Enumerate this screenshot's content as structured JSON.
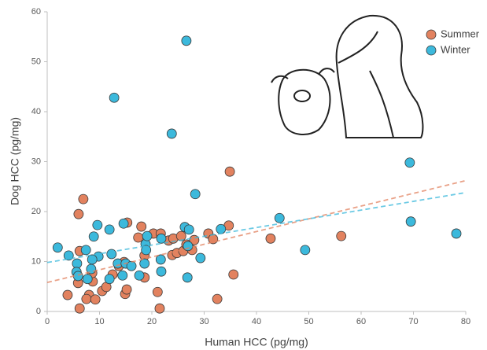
{
  "chart_data": {
    "type": "scatter",
    "x_label": "Human HCC (pg/mg)",
    "y_label": "Dog HCC (pg/mg)",
    "xlim": [
      0,
      80
    ],
    "xticks": [
      0,
      10,
      20,
      30,
      40,
      50,
      60,
      70,
      80
    ],
    "ylim": [
      0,
      60
    ],
    "yticks": [
      0,
      10,
      20,
      30,
      40,
      50,
      60
    ],
    "grid": false,
    "legend": "upper right",
    "series": [
      {
        "name": "Summer",
        "color": "#e2825f",
        "x": [
          6.9,
          6.0,
          6.2,
          3.9,
          6.2,
          5.9,
          8.0,
          7.5,
          9.2,
          8.7,
          8.6,
          10.5,
          11.3,
          12.5,
          13.7,
          14.9,
          15.2,
          14.7,
          15.3,
          17.4,
          18.0,
          18.6,
          18.6,
          20.3,
          21.1,
          21.5,
          21.7,
          23.2,
          23.9,
          24.1,
          24.8,
          25.6,
          26.0,
          26.6,
          27.7,
          28.1,
          30.8,
          31.7,
          32.5,
          34.7,
          34.9,
          35.6,
          42.7,
          56.2
        ],
        "values": [
          22.5,
          19.5,
          12.1,
          3.3,
          0.6,
          5.7,
          3.3,
          2.5,
          2.4,
          6.0,
          7.7,
          4.1,
          4.9,
          7.4,
          9.1,
          3.5,
          4.4,
          9.9,
          17.8,
          14.8,
          17.0,
          6.8,
          11.2,
          15.6,
          3.9,
          0.6,
          15.6,
          14.2,
          11.3,
          14.6,
          11.7,
          15.1,
          12.1,
          13.4,
          12.3,
          14.3,
          15.6,
          14.5,
          2.5,
          17.2,
          28.0,
          7.4,
          14.6,
          15.1
        ],
        "trend_x": [
          0,
          80
        ],
        "trend": [
          5.8,
          26.2
        ]
      },
      {
        "name": "Winter",
        "color": "#3cb9dc",
        "x": [
          2.0,
          4.1,
          5.7,
          5.6,
          5.9,
          7.4,
          7.7,
          8.4,
          8.9,
          9.6,
          9.8,
          8.6,
          11.9,
          11.9,
          12.3,
          12.8,
          13.5,
          14.6,
          14.4,
          15.0,
          16.1,
          17.6,
          18.6,
          18.8,
          18.9,
          19.1,
          21.7,
          21.8,
          21.8,
          23.8,
          26.3,
          26.6,
          26.8,
          27.1,
          26.9,
          28.3,
          29.3,
          33.2,
          44.4,
          49.3,
          69.3,
          69.5,
          78.2
        ],
        "values": [
          12.8,
          11.2,
          9.6,
          7.9,
          7.1,
          12.3,
          6.5,
          8.5,
          15.0,
          17.3,
          11.0,
          10.4,
          16.4,
          6.5,
          11.5,
          42.8,
          9.6,
          17.6,
          7.2,
          9.6,
          9.1,
          7.2,
          9.6,
          13.5,
          12.3,
          15.1,
          10.4,
          8.0,
          14.6,
          35.6,
          16.9,
          54.2,
          6.8,
          16.4,
          13.1,
          23.5,
          10.7,
          16.5,
          18.7,
          12.3,
          29.8,
          18.0,
          15.6
        ],
        "trend_x": [
          0,
          80
        ],
        "trend": [
          9.8,
          23.8
        ]
      }
    ]
  }
}
